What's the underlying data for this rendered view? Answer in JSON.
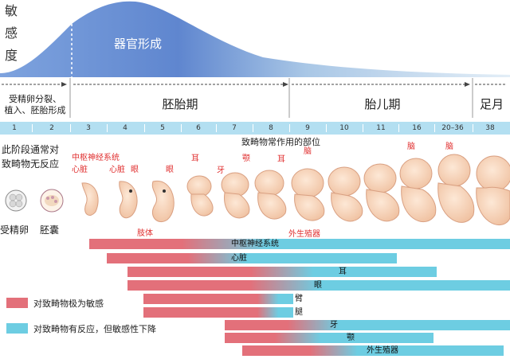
{
  "y_axis_chars": [
    "敏",
    "感",
    "度"
  ],
  "curve_label": "器官形成",
  "periods": {
    "pre": [
      "受精卵分裂、",
      "植入、胚胎形成"
    ],
    "embryo": "胚胎期",
    "fetal": "胎儿期",
    "full": "足月"
  },
  "weeks": [
    "1",
    "2",
    "3",
    "4",
    "5",
    "6",
    "7",
    "8",
    "9",
    "10",
    "11",
    "16",
    "20–36",
    "38"
  ],
  "early_note": [
    "此阶段通常对",
    "致畸物无反应"
  ],
  "stage_labels": {
    "zygote": "受精卵",
    "blastocyst": "胚囊"
  },
  "organs_header": "致畸物常作用的部位",
  "organ_labels": {
    "cns": "中枢神经系统",
    "heart1": "心脏",
    "heart2": "心脏",
    "eye1": "眼",
    "eye2": "眼",
    "ear1": "耳",
    "ear2": "耳",
    "teeth": "牙",
    "jaw": "颚",
    "brain1": "脑",
    "brain2": "脑",
    "brain3": "脑",
    "limbs": "肢体",
    "genitals": "外生殖器"
  },
  "colors": {
    "highly_sensitive": "#e3707a",
    "reduced_sensitivity": "#6dcde2",
    "curve_fill": "#6b8fd4",
    "week_band": "#b3dff1"
  },
  "bars": [
    {
      "label": "中枢神经系统"
    },
    {
      "label": "心脏"
    },
    {
      "label": "耳"
    },
    {
      "label": "眼"
    },
    {
      "label": "臂"
    },
    {
      "label": "腿"
    },
    {
      "label": "牙"
    },
    {
      "label": "颚"
    },
    {
      "label": "外生殖器"
    }
  ],
  "legend": {
    "highly_sensitive": "对致畸物极为敏感",
    "reduced_sensitivity": "对致畸物有反应，但敏感性下降"
  }
}
